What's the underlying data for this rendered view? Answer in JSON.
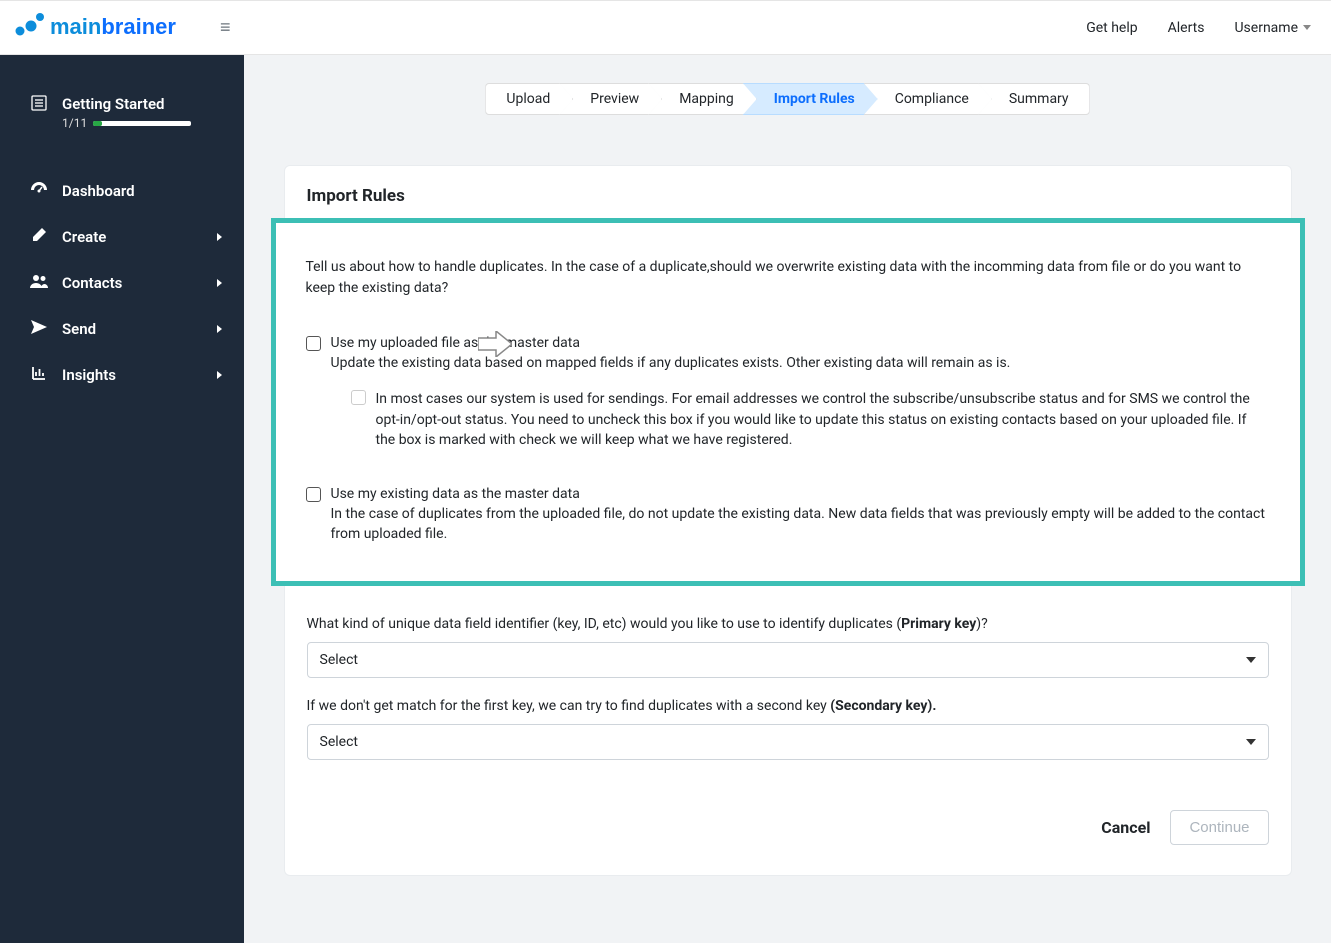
{
  "colors": {
    "sidebar_bg": "#1e2a3a",
    "main_bg": "#f1f3f5",
    "accent_blue": "#0d6efd",
    "highlight_border": "#3cbfb5",
    "progress_green": "#28a745"
  },
  "header": {
    "logo_main": "main",
    "logo_brainer": "brainer",
    "nav": {
      "help": "Get help",
      "alerts": "Alerts",
      "username": "Username"
    }
  },
  "sidebar": {
    "getting_started": {
      "label": "Getting Started",
      "progress_text": "1/11",
      "progress_percent": 9
    },
    "items": [
      {
        "label": "Dashboard",
        "has_children": false,
        "icon": "dashboard"
      },
      {
        "label": "Create",
        "has_children": true,
        "icon": "pencil"
      },
      {
        "label": "Contacts",
        "has_children": true,
        "icon": "users"
      },
      {
        "label": "Send",
        "has_children": true,
        "icon": "send"
      },
      {
        "label": "Insights",
        "has_children": true,
        "icon": "chart"
      }
    ]
  },
  "stepper": {
    "steps": [
      {
        "label": "Upload",
        "active": false
      },
      {
        "label": "Preview",
        "active": false
      },
      {
        "label": "Mapping",
        "active": false
      },
      {
        "label": "Import Rules",
        "active": true
      },
      {
        "label": "Compliance",
        "active": false
      },
      {
        "label": "Summary",
        "active": false
      }
    ]
  },
  "card": {
    "title": "Import Rules",
    "intro": "Tell us about how to handle duplicates. In the case of a duplicate,should we overwrite existing data with the incomming data from file or do you want to keep the existing data?",
    "option1": {
      "label": "Use my uploaded file as the master data",
      "desc": "Update the existing data based on mapped fields if any duplicates exists. Other existing data will remain as is.",
      "sub": "In most cases our system is used for sendings. For email addresses we control the subscribe/unsubscribe status and for SMS we control the opt-in/opt-out status. You need to uncheck this box if you would like to update this status on existing contacts based on your uploaded file. If the box is marked with check we will keep what we have registered."
    },
    "option2": {
      "label": "Use my existing data as the master data",
      "desc": "In the case of duplicates from the uploaded file, do not update the existing data. New data fields that was previously empty will be added to the contact from uploaded file."
    },
    "primary_key": {
      "question_pre": "What kind of unique data field identifier (key, ID, etc) would you like to use to identify duplicates (",
      "question_bold": "Primary key",
      "question_post": ")?",
      "select_value": "Select"
    },
    "secondary_key": {
      "question_pre": "If we don't get match for the first key, we can try to find duplicates with a second key ",
      "question_bold": "(Secondary key).",
      "select_value": "Select"
    },
    "actions": {
      "cancel": "Cancel",
      "continue": "Continue"
    }
  }
}
